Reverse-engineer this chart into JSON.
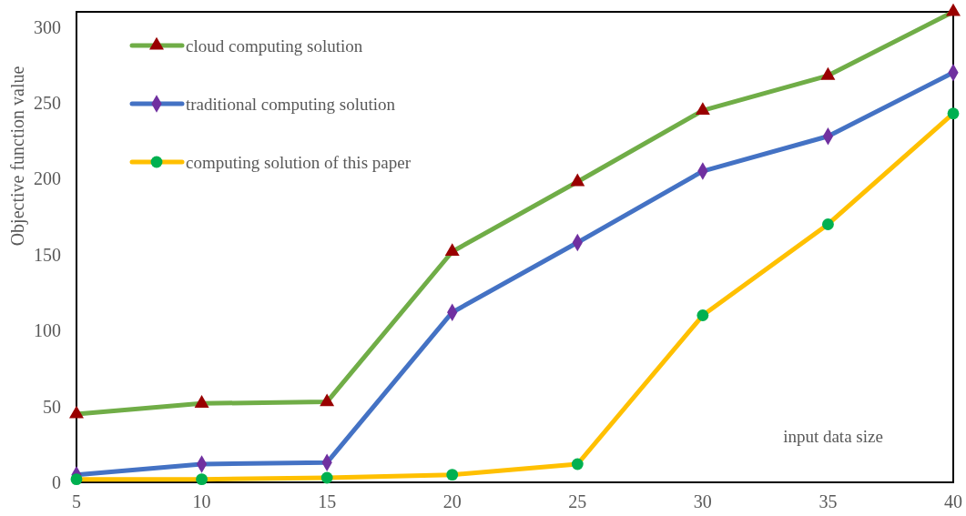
{
  "chart_data": {
    "type": "line",
    "xlabel": "input data size",
    "ylabel": "Objective function value",
    "x": [
      5,
      10,
      15,
      20,
      25,
      30,
      35,
      40
    ],
    "series": [
      {
        "name": "cloud computing solution",
        "color": "#70ad47",
        "marker": "triangle",
        "colors": [
          "#990000",
          "#990000",
          "#990000",
          "#990000",
          "#990000",
          "#990000",
          "#990000",
          "#990000"
        ],
        "values": [
          45,
          52,
          53,
          152,
          198,
          245,
          268,
          310
        ]
      },
      {
        "name": "traditional computing solution",
        "color": "#4472c4",
        "marker": "diamond",
        "colors": [
          "#7030a0",
          "#7030a0",
          "#7030a0",
          "#7030a0",
          "#7030a0",
          "#7030a0",
          "#7030a0",
          "#7030a0"
        ],
        "values": [
          5,
          12,
          13,
          112,
          158,
          205,
          228,
          270
        ]
      },
      {
        "name": "computing solution of this paper",
        "color": "#ffc000",
        "marker": "circle",
        "colors": [
          "#00b050",
          "#00b050",
          "#00b050",
          "#00b050",
          "#00b050",
          "#00b050",
          "#00b050",
          "#00b050"
        ],
        "values": [
          2,
          2,
          3,
          5,
          12,
          110,
          170,
          243
        ]
      }
    ],
    "xlim": [
      5,
      40
    ],
    "xticks": [
      5,
      10,
      15,
      20,
      25,
      30,
      35,
      40
    ],
    "ylim": [
      0,
      310
    ],
    "yticks": [
      0,
      50,
      100,
      150,
      200,
      250,
      300
    ],
    "grid": false,
    "legend": "top left",
    "line_style": "solid"
  }
}
